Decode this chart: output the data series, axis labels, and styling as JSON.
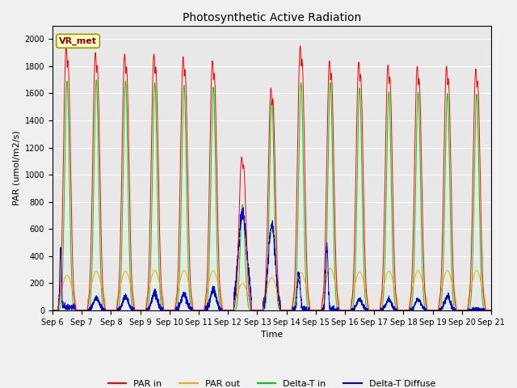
{
  "title": "Photosynthetic Active Radiation",
  "ylabel": "PAR (umol/m2/s)",
  "xlabel": "Time",
  "legend_label": "VR_met",
  "series_labels": [
    "PAR in",
    "PAR out",
    "Delta-T in",
    "Delta-T Diffuse"
  ],
  "series_colors": [
    "#ff0000",
    "#ffa500",
    "#00cc00",
    "#0000cc"
  ],
  "ylim": [
    0,
    2100
  ],
  "yticks": [
    0,
    200,
    400,
    600,
    800,
    1000,
    1200,
    1400,
    1600,
    1800,
    2000
  ],
  "n_days": 15,
  "xtick_labels": [
    "Sep 6",
    "Sep 7",
    "Sep 8",
    "Sep 9",
    "Sep 10",
    "Sep 11",
    "Sep 12",
    "Sep 13",
    "Sep 14",
    "Sep 15",
    "Sep 16",
    "Sep 17",
    "Sep 18",
    "Sep 19",
    "Sep 20",
    "Sep 21"
  ],
  "par_in_peaks": [
    1940,
    1900,
    1890,
    1890,
    1870,
    1840,
    1130,
    1640,
    1950,
    1840,
    1830,
    1810,
    1800,
    1800,
    1780
  ],
  "par_out_peaks": [
    260,
    290,
    290,
    295,
    295,
    295,
    200,
    240,
    280,
    310,
    285,
    290,
    295,
    295,
    295
  ],
  "delta_t_peaks": [
    1690,
    1700,
    1690,
    1680,
    1660,
    1645,
    780,
    1560,
    1680,
    1680,
    1640,
    1610,
    1610,
    1600,
    1595
  ],
  "delta_t_diff_peaks": [
    460,
    90,
    100,
    120,
    120,
    150,
    720,
    630,
    270,
    490,
    80,
    80,
    80,
    100,
    10
  ],
  "fig_bg": "#f0f0f0",
  "ax_bg": "#e8e8e8",
  "grid_color": "#ffffff",
  "vr_box_fc": "#ffffcc",
  "vr_box_ec": "#999900",
  "vr_text_color": "#8B0000"
}
